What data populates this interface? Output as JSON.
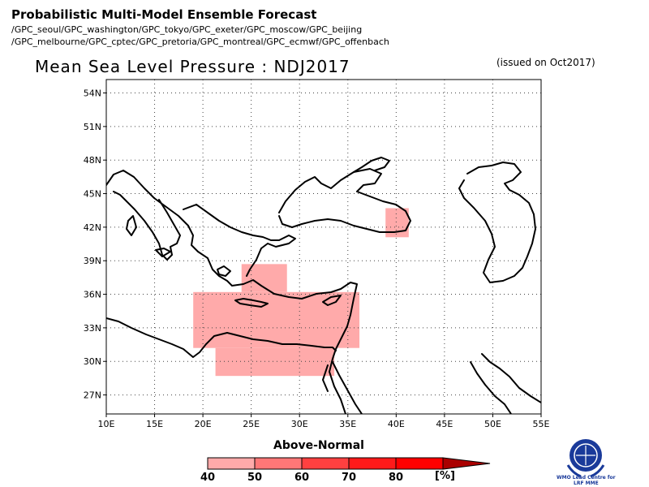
{
  "header": {
    "title": "Probabilistic Multi-Model Ensemble Forecast",
    "gpc_line1": "/GPC_seoul/GPC_washington/GPC_tokyo/GPC_exeter/GPC_moscow/GPC_beijing",
    "gpc_line2": "/GPC_melbourne/GPC_cptec/GPC_pretoria/GPC_montreal/GPC_ecmwf/GPC_offenbach"
  },
  "map": {
    "title": "Mean Sea Level Pressure : NDJ2017",
    "issued": "(issued on Oct2017)",
    "lat_labels": [
      "54N",
      "51N",
      "48N",
      "45N",
      "42N",
      "39N",
      "36N",
      "33N",
      "30N",
      "27N"
    ],
    "lon_labels": [
      "10E",
      "15E",
      "20E",
      "25E",
      "30E",
      "35E",
      "40E",
      "45E",
      "50E",
      "55E"
    ],
    "lat_values": [
      54,
      51,
      48,
      45,
      42,
      39,
      36,
      33,
      30,
      27
    ],
    "lon_values": [
      10,
      15,
      20,
      25,
      30,
      35,
      40,
      45,
      50,
      55
    ],
    "extent": {
      "lon_min": 10,
      "lon_max": 55,
      "lat_min": 25.3,
      "lat_max": 55.2
    },
    "shaded_regions": [
      {
        "category": "40-50",
        "lon": [
          19,
          36.2
        ],
        "lat": [
          31.2,
          36.2
        ]
      },
      {
        "category": "40-50",
        "lon": [
          21.3,
          33.6
        ],
        "lat": [
          28.7,
          31.2
        ]
      },
      {
        "category": "40-50",
        "lon": [
          24,
          28.7
        ],
        "lat": [
          36.2,
          38.7
        ]
      },
      {
        "category": "40-50",
        "lon": [
          38.9,
          41.3
        ],
        "lat": [
          41.1,
          43.7
        ]
      }
    ]
  },
  "legend": {
    "title": "Above-Normal",
    "unit": "[%]",
    "ticks": [
      "40",
      "50",
      "60",
      "70",
      "80"
    ],
    "colors": [
      "#ffaaaa",
      "#ff7777",
      "#ff4040",
      "#ff1a1a",
      "#ff0000",
      "#aa0000"
    ]
  },
  "logo": {
    "line1": "WMO Lead Centre for",
    "line2": "LRF MME"
  }
}
